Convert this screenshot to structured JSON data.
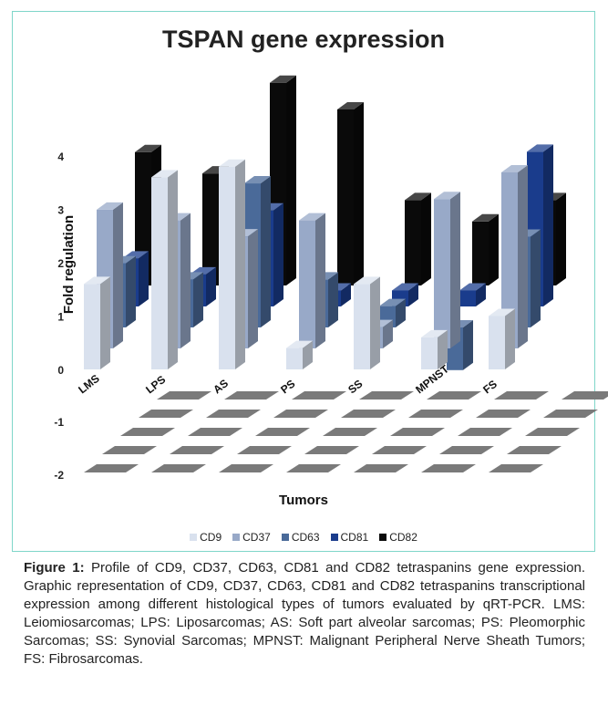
{
  "chart_data": {
    "type": "bar",
    "subtype": "3d-column",
    "title": "TSPAN gene expression",
    "xlabel": "Tumors",
    "ylabel": "Fold regulation",
    "ylim": [
      -2,
      4
    ],
    "yticks": [
      "-2",
      "-1",
      "0",
      "1",
      "2",
      "3",
      "4"
    ],
    "categories": [
      "LMS",
      "LPS",
      "AS",
      "PS",
      "SS",
      "MPNST",
      "FS"
    ],
    "series": [
      {
        "name": "CD9",
        "color": "#d9e1ee",
        "values": [
          1.6,
          3.6,
          3.8,
          0.4,
          1.6,
          0.6,
          1.0
        ]
      },
      {
        "name": "CD37",
        "color": "#98a9c8",
        "values": [
          2.6,
          2.4,
          2.1,
          2.4,
          0.4,
          2.8,
          3.3
        ]
      },
      {
        "name": "CD63",
        "color": "#4a6a99",
        "values": [
          1.2,
          0.9,
          2.7,
          0.9,
          0.4,
          -0.8,
          1.7
        ]
      },
      {
        "name": "CD81",
        "color": "#1a3c8c",
        "values": [
          0.9,
          0.6,
          1.8,
          0.3,
          0.3,
          0.3,
          2.9
        ]
      },
      {
        "name": "CD82",
        "color": "#0a0a0a",
        "values": [
          2.5,
          2.1,
          3.8,
          3.3,
          1.6,
          1.2,
          1.6
        ]
      }
    ],
    "legend_position": "bottom"
  },
  "caption": {
    "label": "Figure 1:",
    "text": " Profile of CD9, CD37, CD63, CD81 and CD82 tetraspanins gene expression. Graphic representation of CD9, CD37, CD63, CD81 and CD82 tetraspanins transcriptional expression among different histological types of tumors evaluated by qRT-PCR. LMS: Leiomiosarcomas; LPS: Liposarcomas; AS: Soft part alveolar sarcomas; PS: Pleomorphic Sarcomas; SS: Synovial Sarcomas; MPNST: Malignant Peripheral Nerve Sheath Tumors; FS: Fibrosarcomas."
  }
}
